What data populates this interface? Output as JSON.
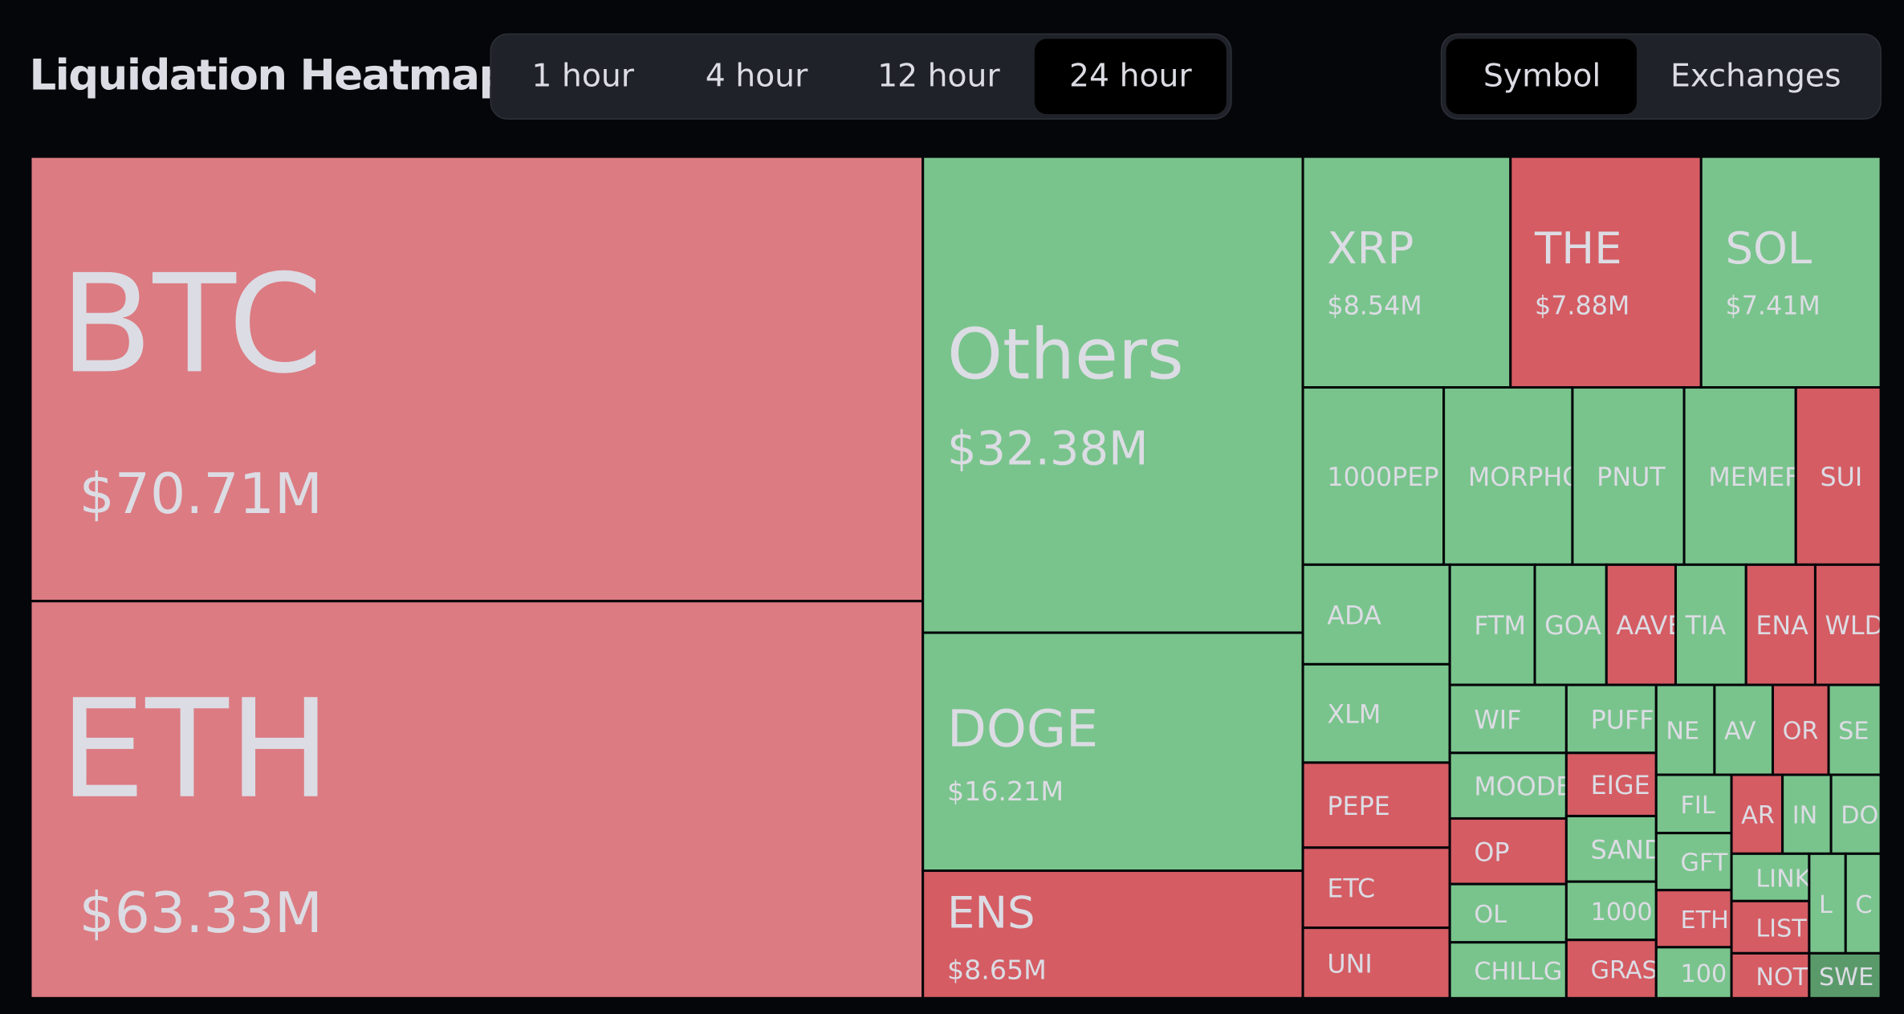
{
  "header": {
    "title": "Liquidation Heatmap"
  },
  "tabs": {
    "time": [
      "1 hour",
      "4 hour",
      "12 hour",
      "24 hour"
    ],
    "view": [
      "Symbol",
      "Exchanges"
    ]
  },
  "tiles": [
    {
      "label": "BTC",
      "value": "$70.71M"
    },
    {
      "label": "ETH",
      "value": "$63.33M"
    },
    {
      "label": "Others",
      "value": "$32.38M"
    },
    {
      "label": "DOGE",
      "value": "$16.21M"
    },
    {
      "label": "ENS",
      "value": "$8.65M"
    },
    {
      "label": "XRP",
      "value": "$8.54M"
    },
    {
      "label": "THE",
      "value": "$7.88M"
    },
    {
      "label": "SOL",
      "value": "$7.41M"
    },
    {
      "label": "1000PEP"
    },
    {
      "label": "MORPHO"
    },
    {
      "label": "PNUT"
    },
    {
      "label": "MEMEF"
    },
    {
      "label": "SUI"
    },
    {
      "label": "ADA"
    },
    {
      "label": "XLM"
    },
    {
      "label": "PEPE"
    },
    {
      "label": "ETC"
    },
    {
      "label": "UNI"
    },
    {
      "label": "FTM"
    },
    {
      "label": "GOA"
    },
    {
      "label": "AAVE"
    },
    {
      "label": "TIA"
    },
    {
      "label": "ENA"
    },
    {
      "label": "WLD"
    },
    {
      "label": "WIF"
    },
    {
      "label": "MOODE"
    },
    {
      "label": "OP"
    },
    {
      "label": "OL"
    },
    {
      "label": "CHILLG"
    },
    {
      "label": "PUFF"
    },
    {
      "label": "EIGE"
    },
    {
      "label": "SAND"
    },
    {
      "label": "1000"
    },
    {
      "label": "GRAS"
    },
    {
      "label": "NE"
    },
    {
      "label": "AV"
    },
    {
      "label": "OR"
    },
    {
      "label": "SE"
    },
    {
      "label": "FIL"
    },
    {
      "label": "GFT"
    },
    {
      "label": "ETH"
    },
    {
      "label": "100"
    },
    {
      "label": "AR"
    },
    {
      "label": "IN"
    },
    {
      "label": "DO"
    },
    {
      "label": "LINK"
    },
    {
      "label": "LIST"
    },
    {
      "label": "NOT"
    },
    {
      "label": "L"
    },
    {
      "label": "C"
    },
    {
      "label": "SWE"
    }
  ]
}
